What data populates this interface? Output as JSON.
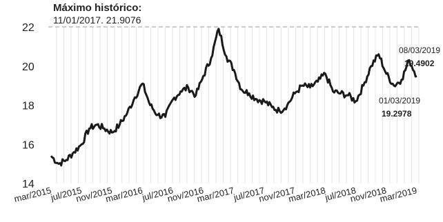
{
  "chart_data": {
    "type": "line",
    "annotations": {
      "record": {
        "title": "Máximo histórico:",
        "text": "11/01/2017. 21.9076",
        "value": 21.9076
      },
      "last": {
        "date": "08/03/2019",
        "value_label": "19.4902",
        "value": 19.4902
      },
      "prev": {
        "date": "01/03/2019",
        "value_label": "19.2978",
        "value": 19.2978
      }
    },
    "y_ticks": [
      "14",
      "16",
      "18",
      "20",
      "22"
    ],
    "ylim": [
      14,
      22
    ],
    "x_ticks": [
      "mar/2015",
      "jul/2015",
      "nov/2015",
      "mar/2016",
      "jul/2016",
      "nov/2016",
      "mar/2017",
      "jul/2017",
      "nov/2017",
      "mar/2018",
      "jul/2018",
      "nov/2018",
      "mar/2019"
    ],
    "grid": "vertical",
    "series": [
      {
        "color": "#1a1a1a",
        "x": [
          "2015-03",
          "2015-04",
          "2015-05",
          "2015-06",
          "2015-07",
          "2015-08",
          "2015-09",
          "2015-10",
          "2015-11",
          "2015-12",
          "2016-01",
          "2016-02",
          "2016-03",
          "2016-04",
          "2016-05",
          "2016-06",
          "2016-07",
          "2016-08",
          "2016-09",
          "2016-10",
          "2016-11",
          "2016-12",
          "2017-01",
          "2017-02",
          "2017-03",
          "2017-04",
          "2017-05",
          "2017-06",
          "2017-07",
          "2017-08",
          "2017-09",
          "2017-10",
          "2017-11",
          "2017-12",
          "2018-01",
          "2018-02",
          "2018-03",
          "2018-04",
          "2018-05",
          "2018-06",
          "2018-07",
          "2018-08",
          "2018-09",
          "2018-10",
          "2018-11",
          "2018-12",
          "2019-01",
          "2019-02",
          "2019-03"
        ],
        "values": [
          15.4,
          15.0,
          15.2,
          15.6,
          16.0,
          16.8,
          17.0,
          16.8,
          16.6,
          17.0,
          17.6,
          18.4,
          19.1,
          18.0,
          17.5,
          17.4,
          18.3,
          18.7,
          18.9,
          18.5,
          19.5,
          20.4,
          21.9,
          20.5,
          19.8,
          18.8,
          18.6,
          18.3,
          18.2,
          17.9,
          17.7,
          18.0,
          18.6,
          19.0,
          18.9,
          19.2,
          19.6,
          18.7,
          18.6,
          18.5,
          18.2,
          19.0,
          20.0,
          20.6,
          19.6,
          19.0,
          19.3,
          20.3,
          19.49
        ]
      }
    ]
  }
}
